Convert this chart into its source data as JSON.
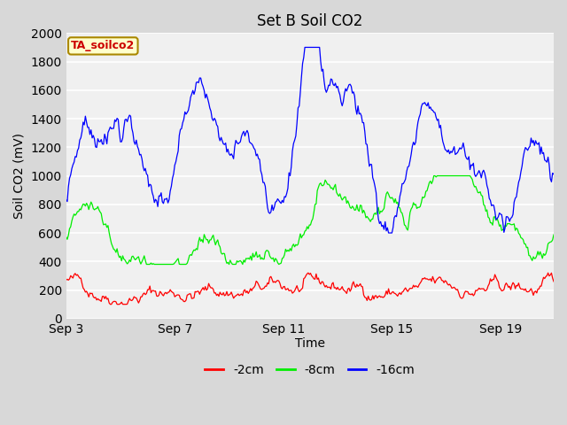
{
  "title": "Set B Soil CO2",
  "xlabel": "Time",
  "ylabel": "Soil CO2 (mV)",
  "ylim": [
    0,
    2000
  ],
  "yticks": [
    0,
    200,
    400,
    600,
    800,
    1000,
    1200,
    1400,
    1600,
    1800,
    2000
  ],
  "fig_bg_color": "#d8d8d8",
  "plot_bg_color": "#f0f0f0",
  "line_colors": {
    "2cm": "#ff0000",
    "8cm": "#00ee00",
    "16cm": "#0000ff"
  },
  "legend_labels": [
    "-2cm",
    "-8cm",
    "-16cm"
  ],
  "annotation_text": "TA_soilco2",
  "annotation_bg": "#ffffcc",
  "annotation_border": "#aa8800",
  "annotation_color": "#cc0000",
  "x_tick_labels": [
    "Sep 3",
    "Sep 7",
    "Sep 11",
    "Sep 15",
    "Sep 19"
  ],
  "x_tick_positions": [
    0,
    96,
    192,
    288,
    384
  ],
  "n_points": 432,
  "seed": 42
}
